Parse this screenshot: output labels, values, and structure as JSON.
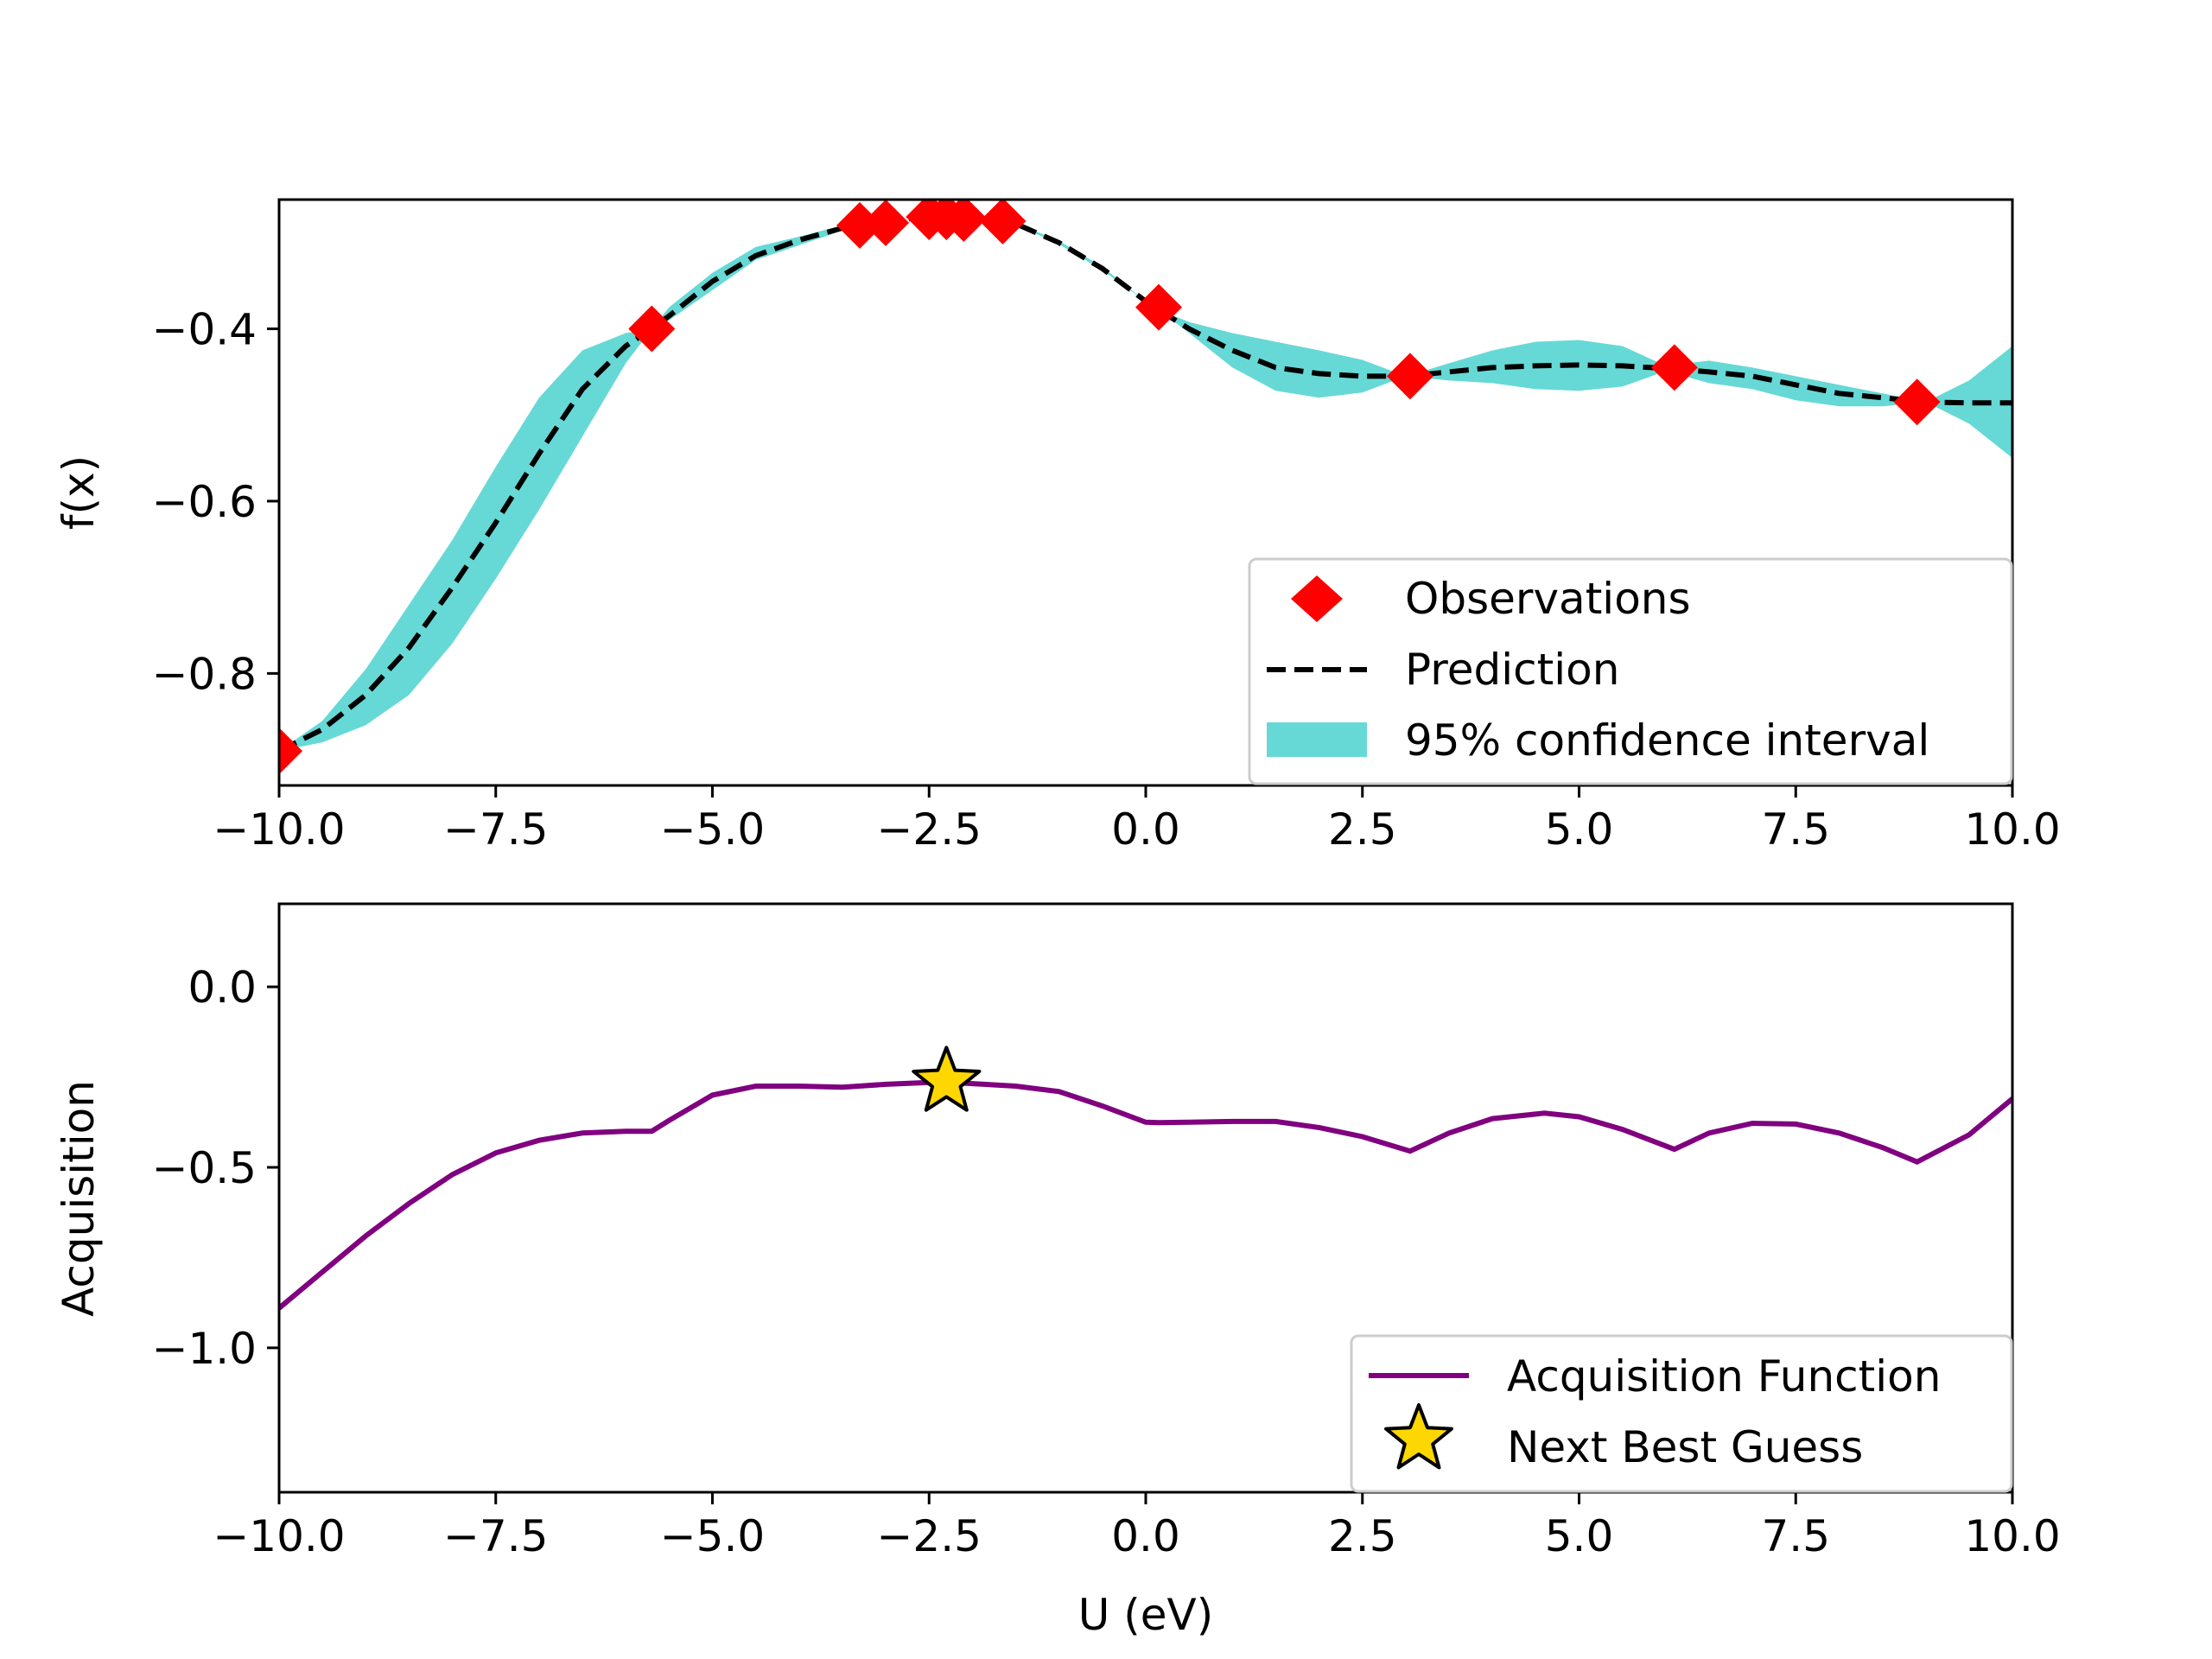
{
  "chart_data": [
    {
      "type": "line",
      "xlabel": "",
      "ylabel": "f(x)",
      "xlim": [
        -10.0,
        10.0
      ],
      "ylim": [
        -0.93,
        -0.25
      ],
      "xticks": [
        -10.0,
        -7.5,
        -5.0,
        -2.5,
        0.0,
        2.5,
        5.0,
        7.5,
        10.0
      ],
      "xtick_labels": [
        "−10.0",
        "−7.5",
        "−5.0",
        "−2.5",
        "0.0",
        "2.5",
        "5.0",
        "7.5",
        "10.0"
      ],
      "yticks": [
        -0.8,
        -0.6,
        -0.4
      ],
      "ytick_labels": [
        "−0.8",
        "−0.6",
        "−0.4"
      ],
      "grid": false,
      "legend_position": "lower-right",
      "legend": [
        "Observations",
        "Prediction",
        "95% confidence interval"
      ],
      "colors": {
        "observations": "#ff0000",
        "prediction": "#000000",
        "confidence": "#66d9d6"
      },
      "observations": {
        "x": [
          -10.0,
          -5.7,
          -3.3,
          -3.0,
          -2.5,
          -2.3,
          -2.1,
          -1.65,
          0.15,
          3.05,
          6.1,
          8.9
        ],
        "y": [
          -0.89,
          -0.4,
          -0.28,
          -0.277,
          -0.27,
          -0.27,
          -0.272,
          -0.275,
          -0.375,
          -0.455,
          -0.445,
          -0.485
        ]
      },
      "prediction": {
        "x": [
          -10,
          -9.5,
          -9,
          -8.5,
          -8,
          -7.5,
          -7,
          -6.5,
          -6,
          -5.7,
          -5.5,
          -5,
          -4.5,
          -4,
          -3.5,
          -3,
          -2.5,
          -2,
          -1.5,
          -1,
          -0.5,
          0,
          0.15,
          0.5,
          1,
          1.5,
          2,
          2.5,
          3,
          3.5,
          4,
          4.5,
          5,
          5.5,
          6,
          6.5,
          7,
          7.5,
          8,
          8.5,
          9,
          9.5,
          10
        ],
        "y": [
          -0.89,
          -0.865,
          -0.825,
          -0.77,
          -0.7,
          -0.625,
          -0.545,
          -0.47,
          -0.42,
          -0.4,
          -0.385,
          -0.345,
          -0.315,
          -0.297,
          -0.283,
          -0.275,
          -0.27,
          -0.27,
          -0.278,
          -0.3,
          -0.33,
          -0.368,
          -0.378,
          -0.4,
          -0.425,
          -0.445,
          -0.452,
          -0.455,
          -0.455,
          -0.45,
          -0.445,
          -0.443,
          -0.442,
          -0.443,
          -0.446,
          -0.45,
          -0.455,
          -0.465,
          -0.475,
          -0.48,
          -0.485,
          -0.486,
          -0.486
        ]
      },
      "confidence_upper": [
        -0.89,
        -0.855,
        -0.795,
        -0.72,
        -0.645,
        -0.56,
        -0.48,
        -0.425,
        -0.405,
        -0.4,
        -0.375,
        -0.335,
        -0.305,
        -0.293,
        -0.28,
        -0.275,
        -0.27,
        -0.27,
        -0.277,
        -0.298,
        -0.328,
        -0.368,
        -0.378,
        -0.392,
        -0.405,
        -0.415,
        -0.425,
        -0.436,
        -0.455,
        -0.44,
        -0.425,
        -0.415,
        -0.413,
        -0.42,
        -0.443,
        -0.437,
        -0.445,
        -0.455,
        -0.465,
        -0.475,
        -0.485,
        -0.46,
        -0.42
      ],
      "confidence_lower": [
        -0.89,
        -0.88,
        -0.86,
        -0.825,
        -0.765,
        -0.69,
        -0.61,
        -0.525,
        -0.44,
        -0.4,
        -0.39,
        -0.355,
        -0.32,
        -0.303,
        -0.286,
        -0.275,
        -0.27,
        -0.27,
        -0.279,
        -0.302,
        -0.332,
        -0.368,
        -0.378,
        -0.405,
        -0.445,
        -0.472,
        -0.48,
        -0.474,
        -0.455,
        -0.46,
        -0.463,
        -0.47,
        -0.472,
        -0.467,
        -0.449,
        -0.463,
        -0.47,
        -0.483,
        -0.49,
        -0.49,
        -0.485,
        -0.51,
        -0.55
      ]
    },
    {
      "type": "line",
      "xlabel": "U (eV)",
      "ylabel": "Acquisition",
      "xlim": [
        -10.0,
        10.0
      ],
      "ylim": [
        -1.4,
        0.23
      ],
      "xticks": [
        -10.0,
        -7.5,
        -5.0,
        -2.5,
        0.0,
        2.5,
        5.0,
        7.5,
        10.0
      ],
      "xtick_labels": [
        "−10.0",
        "−7.5",
        "−5.0",
        "−2.5",
        "0.0",
        "2.5",
        "5.0",
        "7.5",
        "10.0"
      ],
      "yticks": [
        -1.0,
        -0.5,
        0.0
      ],
      "ytick_labels": [
        "−1.0",
        "−0.5",
        "0.0"
      ],
      "grid": false,
      "legend_position": "lower-right",
      "legend": [
        "Acquisition Function",
        "Next Best Guess"
      ],
      "colors": {
        "acquisition": "#800080",
        "star": "#ffd700"
      },
      "acquisition": {
        "x": [
          -10,
          -9.5,
          -9,
          -8.5,
          -8,
          -7.5,
          -7,
          -6.5,
          -6,
          -5.7,
          -5.5,
          -5,
          -4.5,
          -4,
          -3.5,
          -3,
          -2.5,
          -2.3,
          -2,
          -1.5,
          -1,
          -0.5,
          0,
          0.15,
          0.5,
          1,
          1.5,
          2,
          2.5,
          3.05,
          3.5,
          4,
          4.6,
          5,
          5.5,
          6.1,
          6.5,
          7,
          7.5,
          8,
          8.5,
          8.9,
          9.5,
          10
        ],
        "y": [
          -0.89,
          -0.79,
          -0.69,
          -0.6,
          -0.52,
          -0.46,
          -0.425,
          -0.405,
          -0.4,
          -0.4,
          -0.37,
          -0.3,
          -0.275,
          -0.275,
          -0.278,
          -0.27,
          -0.265,
          -0.264,
          -0.268,
          -0.275,
          -0.29,
          -0.33,
          -0.375,
          -0.376,
          -0.375,
          -0.373,
          -0.373,
          -0.39,
          -0.415,
          -0.455,
          -0.405,
          -0.365,
          -0.35,
          -0.36,
          -0.395,
          -0.45,
          -0.405,
          -0.378,
          -0.38,
          -0.405,
          -0.445,
          -0.485,
          -0.41,
          -0.31
        ]
      },
      "next_best_guess": {
        "x": -2.3,
        "y": -0.264
      }
    }
  ]
}
